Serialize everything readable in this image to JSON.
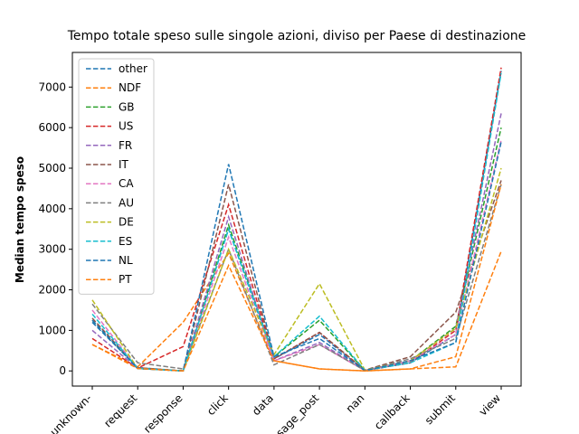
{
  "chart_data": {
    "type": "line",
    "title": "Tempo totale speso sulle singole azioni, diviso per Paese di destinazione",
    "y_label": "Median tempo speso",
    "categories": [
      "-unknown-",
      "request",
      "response",
      "click",
      "data",
      "message_post",
      "nan",
      "callback",
      "submit",
      "view"
    ],
    "ylim": [
      -374,
      7854
    ],
    "yticks": [
      0,
      1000,
      2000,
      3000,
      4000,
      5000,
      6000,
      7000
    ],
    "legend": "upper left",
    "series": [
      {
        "name": "other",
        "color": "#1f77b4",
        "values": [
          1200,
          80,
          0,
          3500,
          300,
          900,
          10,
          200,
          900,
          7400
        ]
      },
      {
        "name": "NDF",
        "color": "#ff7f0e",
        "values": [
          650,
          100,
          1200,
          2900,
          250,
          50,
          0,
          50,
          100,
          2950
        ]
      },
      {
        "name": "GB",
        "color": "#2ca02c",
        "values": [
          1250,
          60,
          0,
          3600,
          350,
          1250,
          10,
          250,
          1100,
          6000
        ]
      },
      {
        "name": "US",
        "color": "#d62728",
        "values": [
          800,
          70,
          600,
          4100,
          300,
          950,
          10,
          200,
          1000,
          7480
        ]
      },
      {
        "name": "FR",
        "color": "#9467bd",
        "values": [
          1000,
          60,
          0,
          3800,
          250,
          700,
          10,
          250,
          1050,
          6350
        ]
      },
      {
        "name": "IT",
        "color": "#8c564b",
        "values": [
          1300,
          80,
          0,
          4600,
          300,
          950,
          20,
          350,
          1450,
          4700
        ]
      },
      {
        "name": "CA",
        "color": "#e377c2",
        "values": [
          1500,
          60,
          0,
          3300,
          250,
          650,
          10,
          250,
          900,
          5700
        ]
      },
      {
        "name": "AU",
        "color": "#7f7f7f",
        "values": [
          1650,
          200,
          50,
          3000,
          150,
          650,
          10,
          300,
          800,
          4600
        ]
      },
      {
        "name": "DE",
        "color": "#bcbd22",
        "values": [
          1750,
          60,
          0,
          3000,
          400,
          2150,
          20,
          250,
          1050,
          5000
        ]
      },
      {
        "name": "ES",
        "color": "#17becf",
        "values": [
          1400,
          60,
          0,
          3500,
          350,
          1350,
          10,
          200,
          700,
          7350
        ]
      },
      {
        "name": "NL",
        "color": "#1f77b4",
        "values": [
          1250,
          60,
          0,
          5100,
          350,
          800,
          10,
          250,
          700,
          5650
        ]
      },
      {
        "name": "PT",
        "color": "#ff7f0e",
        "values": [
          650,
          60,
          0,
          2600,
          250,
          50,
          0,
          50,
          350,
          4600
        ]
      }
    ]
  }
}
